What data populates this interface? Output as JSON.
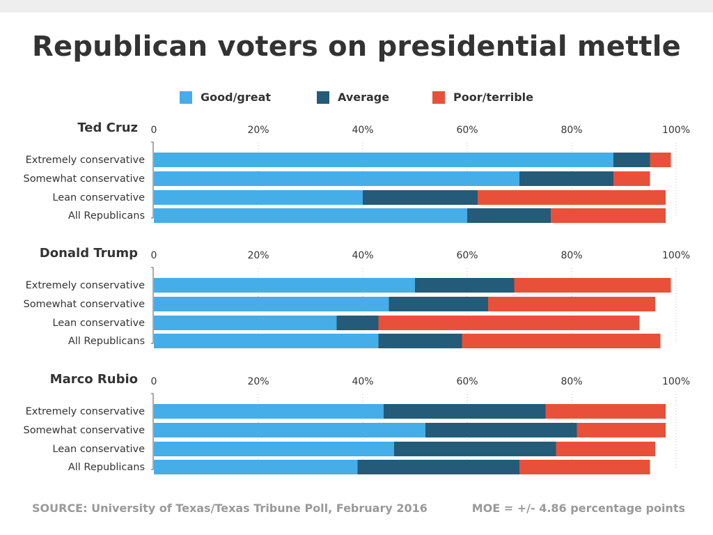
{
  "title": "Republican voters on presidential mettle",
  "legend": [
    {
      "label": "Good/great",
      "color": "#45ade8"
    },
    {
      "label": "Average",
      "color": "#235b78"
    },
    {
      "label": "Poor/terrible",
      "color": "#e8503a"
    }
  ],
  "footer": {
    "source": "SOURCE: University of Texas/Texas Tribune Poll, February 2016",
    "moe": "MOE = +/- 4.86 percentage points"
  },
  "chart_data": {
    "type": "bar",
    "stacked": true,
    "orientation": "horizontal",
    "xlim": [
      0,
      100
    ],
    "ticks": [
      "0",
      "20%",
      "40%",
      "60%",
      "80%",
      "100%"
    ],
    "grid": true,
    "legend_position": "top",
    "categories": [
      "Extremely conservative",
      "Somewhat conservative",
      "Lean conservative",
      "All Republicans"
    ],
    "series_names": [
      "Good/great",
      "Average",
      "Poor/terrible"
    ],
    "panels": [
      {
        "name": "Ted Cruz",
        "values": [
          [
            88,
            7,
            4
          ],
          [
            70,
            18,
            7
          ],
          [
            40,
            22,
            36
          ],
          [
            60,
            16,
            22
          ]
        ]
      },
      {
        "name": "Donald Trump",
        "values": [
          [
            50,
            19,
            30
          ],
          [
            45,
            19,
            32
          ],
          [
            35,
            8,
            50
          ],
          [
            43,
            16,
            38
          ]
        ]
      },
      {
        "name": "Marco Rubio",
        "values": [
          [
            44,
            31,
            23
          ],
          [
            52,
            29,
            17
          ],
          [
            46,
            31,
            19
          ],
          [
            39,
            31,
            25
          ]
        ]
      }
    ]
  }
}
